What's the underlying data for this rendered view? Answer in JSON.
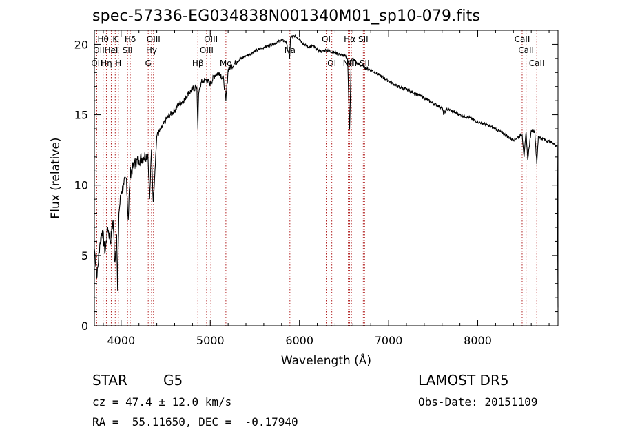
{
  "chart_data": {
    "type": "line",
    "title": "spec-57336-EG034838N001340M01_sp10-079.fits",
    "xlabel": "Wavelength (Å)",
    "ylabel": "Flux (relative)",
    "xlim": [
      3700,
      8900
    ],
    "ylim": [
      0,
      21
    ],
    "x_ticks": [
      4000,
      5000,
      6000,
      7000,
      8000
    ],
    "y_ticks": [
      0,
      5,
      10,
      15,
      20
    ],
    "series": [
      {
        "x": [
          3700,
          3730,
          3760,
          3790,
          3820,
          3850,
          3880,
          3910,
          3930,
          3950,
          3960,
          3975,
          4000,
          4030,
          4060,
          4080,
          4100,
          4150,
          4200,
          4250,
          4300,
          4320,
          4340,
          4360,
          4400,
          4450,
          4500,
          4550,
          4600,
          4650,
          4700,
          4750,
          4800,
          4850,
          4861,
          4870,
          4900,
          4950,
          5000,
          5050,
          5100,
          5150,
          5175,
          5200,
          5300,
          5400,
          5500,
          5600,
          5700,
          5800,
          5850,
          5890,
          5900,
          5950,
          6000,
          6050,
          6100,
          6150,
          6200,
          6250,
          6300,
          6400,
          6500,
          6540,
          6563,
          6580,
          6600,
          6650,
          6700,
          6750,
          6800,
          6900,
          7000,
          7100,
          7200,
          7300,
          7400,
          7500,
          7600,
          7620,
          7650,
          7700,
          7800,
          7900,
          8000,
          8100,
          8200,
          8300,
          8400,
          8498,
          8520,
          8542,
          8560,
          8600,
          8640,
          8662,
          8680,
          8720,
          8760,
          8800,
          8840,
          8860,
          8890,
          8900
        ],
        "y": [
          5.5,
          3.5,
          5.8,
          6.8,
          5.2,
          7.0,
          6.0,
          7.5,
          4.5,
          6.5,
          2.5,
          8.0,
          9.5,
          10.0,
          10.5,
          7.5,
          10.8,
          11.5,
          11.8,
          12.0,
          12.2,
          9.0,
          12.5,
          8.8,
          13.5,
          14.0,
          14.6,
          15.0,
          15.3,
          15.8,
          16.0,
          16.5,
          16.8,
          17.0,
          14.0,
          16.5,
          17.3,
          17.5,
          17.2,
          17.8,
          18.0,
          17.5,
          16.0,
          18.2,
          18.8,
          19.2,
          19.5,
          19.8,
          20.0,
          20.3,
          20.2,
          19.0,
          20.5,
          20.6,
          20.4,
          20.0,
          19.8,
          19.9,
          19.6,
          19.5,
          19.6,
          19.4,
          19.2,
          19.0,
          14.0,
          18.8,
          19.0,
          18.6,
          18.5,
          18.3,
          18.2,
          17.8,
          17.4,
          17.0,
          16.8,
          16.5,
          16.2,
          15.8,
          15.5,
          15.0,
          15.4,
          15.3,
          15.0,
          14.8,
          14.5,
          14.3,
          14.0,
          13.6,
          13.2,
          13.6,
          12.0,
          13.8,
          11.8,
          13.9,
          13.8,
          11.5,
          13.5,
          13.3,
          13.2,
          13.1,
          13.0,
          12.9,
          12.8,
          1.3
        ]
      }
    ],
    "lines": [
      {
        "wl": 3727,
        "label": "OII",
        "row": 3
      },
      {
        "wl": 3750,
        "label": "OII",
        "row": 2
      },
      {
        "wl": 3798,
        "label": "Hθ",
        "row": 1
      },
      {
        "wl": 3835,
        "label": "Hη",
        "row": 3
      },
      {
        "wl": 3889,
        "label": "HeI",
        "row": 2
      },
      {
        "wl": 3934,
        "label": "K",
        "row": 1
      },
      {
        "wl": 3969,
        "label": "H",
        "row": 3
      },
      {
        "wl": 4072,
        "label": "SII",
        "row": 2
      },
      {
        "wl": 4102,
        "label": "Hδ",
        "row": 1
      },
      {
        "wl": 4304,
        "label": "G",
        "row": 3
      },
      {
        "wl": 4341,
        "label": "Hγ",
        "row": 2
      },
      {
        "wl": 4363,
        "label": "OIII",
        "row": 1
      },
      {
        "wl": 4861,
        "label": "Hβ",
        "row": 3
      },
      {
        "wl": 4959,
        "label": "OIII",
        "row": 2
      },
      {
        "wl": 5007,
        "label": "OIII",
        "row": 1
      },
      {
        "wl": 5175,
        "label": "Mg",
        "row": 3
      },
      {
        "wl": 5893,
        "label": "Na",
        "row": 2
      },
      {
        "wl": 6300,
        "label": "OI",
        "row": 1
      },
      {
        "wl": 6363,
        "label": "OI",
        "row": 3
      },
      {
        "wl": 6548,
        "label": "NII",
        "row": 3
      },
      {
        "wl": 6563,
        "label": "Hα",
        "row": 1
      },
      {
        "wl": 6583,
        "label": "NII",
        "row": 3
      },
      {
        "wl": 6716,
        "label": "SII",
        "row": 1
      },
      {
        "wl": 6731,
        "label": "SII",
        "row": 3
      },
      {
        "wl": 8498,
        "label": "CaII",
        "row": 1
      },
      {
        "wl": 8542,
        "label": "CaII",
        "row": 2
      },
      {
        "wl": 8662,
        "label": "CaII",
        "row": 3
      }
    ],
    "line_color": "#b22222"
  },
  "info": {
    "object_class": "STAR",
    "subclass": "G5",
    "survey": "LAMOST DR5",
    "cz": "cz = 47.4 ± 12.0 km/s",
    "obs_date": "Obs-Date: 20151109",
    "coords": "RA =  55.11650, DEC =  -0.17940"
  }
}
